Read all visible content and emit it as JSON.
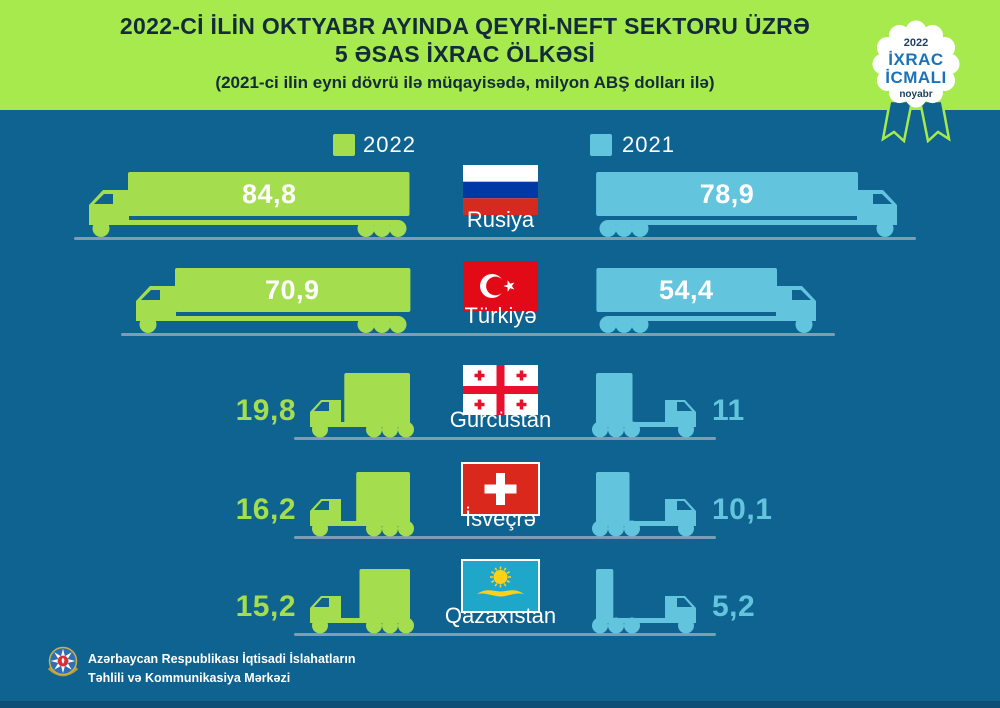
{
  "header": {
    "title_line1": "2022-Cİ İLİN OKTYABR AYINDA QEYRİ-NEFT SEKTORU ÜZRƏ",
    "title_line2": "5 ƏSAS İXRAC ÖLKƏSİ",
    "subtitle": "(2021-ci ilin eyni dövrü ilə müqayisədə, milyon ABŞ dolları ilə)",
    "badge": {
      "year": "2022",
      "line1": "İXRAC",
      "line2": "İCMALI",
      "month": "noyabr"
    }
  },
  "legend": {
    "y2022": "2022",
    "y2021": "2021"
  },
  "chart_data": {
    "type": "bar",
    "orientation": "horizontal-paired-pictogram",
    "title": "2022-ci ilin oktyabr ayında qeyri-neft sektoru üzrə 5 əsas ixrac ölkəsi",
    "unit": "milyon ABŞ dolları",
    "categories": [
      "Rusiya",
      "Türkiyə",
      "Gürcüstan",
      "İsveçrə",
      "Qazaxıstan"
    ],
    "series": [
      {
        "name": "2022",
        "color": "#a4dd4d",
        "values": [
          84.8,
          70.9,
          19.8,
          16.2,
          15.2
        ]
      },
      {
        "name": "2021",
        "color": "#62c4dd",
        "values": [
          78.9,
          54.4,
          11,
          10.1,
          5.2
        ]
      }
    ],
    "legend_position": "top"
  },
  "rows": [
    {
      "country": "Rusiya",
      "flag": "russia",
      "label_2022": "84,8",
      "label_2021": "78,9"
    },
    {
      "country": "Türkiyə",
      "flag": "turkey",
      "label_2022": "70,9",
      "label_2021": "54,4"
    },
    {
      "country": "Gürcüstan",
      "flag": "georgia",
      "label_2022": "19,8",
      "label_2021": "11"
    },
    {
      "country": "İsveçrə",
      "flag": "switzerland",
      "label_2022": "16,2",
      "label_2021": "10,1"
    },
    {
      "country": "Qazaxıstan",
      "flag": "kazakhstan",
      "label_2022": "15,2",
      "label_2021": "5,2"
    }
  ],
  "footer": {
    "org_line1": "Azərbaycan Respublikası İqtisadi İslahatların",
    "org_line2": "Təhlili və Kommunikasiya Mərkəzi"
  },
  "colors": {
    "background": "#0e6390",
    "header_bg": "#a7ea4d",
    "accent_green": "#a4dd4d",
    "accent_blue": "#62c4dd",
    "title_text": "#142c3a",
    "badge_blue": "#1a73ba",
    "badge_navy": "#1c3f5e",
    "road": "#7f9db2",
    "bottom_strip": "#0d4e76",
    "value_text": "#ffffff"
  }
}
